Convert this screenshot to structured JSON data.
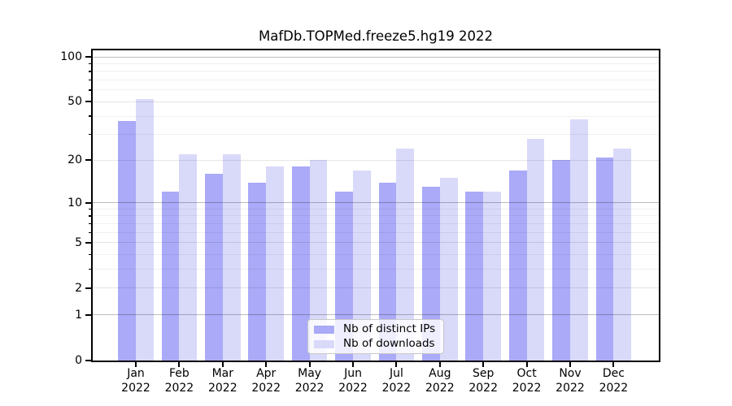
{
  "title": "MafDb.TOPMed.freeze5.hg19 2022",
  "chart_data": {
    "type": "bar",
    "title": "MafDb.TOPMed.freeze5.hg19 2022",
    "categories": [
      "Jan",
      "Feb",
      "Mar",
      "Apr",
      "May",
      "Jun",
      "Jul",
      "Aug",
      "Sep",
      "Oct",
      "Nov",
      "Dec"
    ],
    "year_label": "2022",
    "series": [
      {
        "name": "Nb of distinct IPs",
        "color": "#aaaaf8",
        "values": [
          37,
          12,
          16,
          14,
          18,
          12,
          14,
          13,
          12,
          17,
          20,
          21
        ]
      },
      {
        "name": "Nb of downloads",
        "color": "#d9d9fa",
        "values": [
          52,
          22,
          22,
          18,
          20,
          17,
          24,
          15,
          12,
          28,
          38,
          24
        ]
      }
    ],
    "xlabel": "",
    "ylabel": "",
    "yscale": "log1p",
    "ylim": [
      0,
      112
    ],
    "y_major_ticks": [
      100,
      50,
      20,
      10,
      5,
      2,
      1,
      0
    ],
    "y_minor_ticks": [
      3,
      4,
      6,
      7,
      8,
      9,
      30,
      40,
      60,
      70,
      80,
      90
    ],
    "grid": true,
    "legend_position": "lower center",
    "colors": {
      "grid_decade": "rgba(0,0,0,0.26)",
      "grid_major": "rgba(0,0,0,0.10)",
      "grid_minor": "rgba(0,0,0,0.06)",
      "axis": "#000000"
    }
  }
}
